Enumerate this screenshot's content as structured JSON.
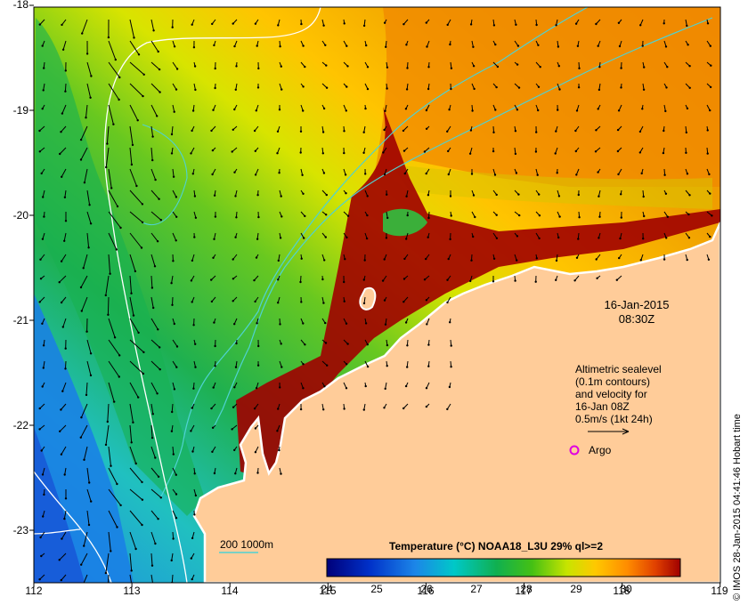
{
  "map": {
    "date": "16-Jan-2015",
    "time": "08:30Z",
    "legend_lines": [
      "Altimetric sealevel",
      "(0.1m contours)",
      "and velocity for",
      "16-Jan 08Z",
      "0.5m/s (1kt 24h)"
    ],
    "argo_label": "Argo",
    "contour_label": "200  1000m",
    "colorbar_title": "Temperature (°C) NOAA18_L3U 29% ql>=2",
    "colorbar_ticks": [
      "24",
      "25",
      "26",
      "27",
      "28",
      "29",
      "30"
    ],
    "credit": "© IMOS 28-Jan-2015 04:41:46 Hobart time",
    "lat_labels": [
      "-18",
      "-19",
      "-20",
      "-21",
      "-22",
      "-23"
    ],
    "lon_labels": [
      "112",
      "113",
      "114",
      "115",
      "116",
      "117",
      "118",
      "119"
    ],
    "colors": {
      "land": "#ffcc99",
      "coast": "#ffffff",
      "isobath": "#4fd2d2",
      "contour": "#ffffff",
      "argo": "#e000e0",
      "colormap": [
        "#00007a",
        "#0033c8",
        "#1c86e8",
        "#00c8c8",
        "#10b050",
        "#44c014",
        "#c8e400",
        "#ffc800",
        "#ff8c00",
        "#e04000",
        "#a00000"
      ]
    }
  }
}
